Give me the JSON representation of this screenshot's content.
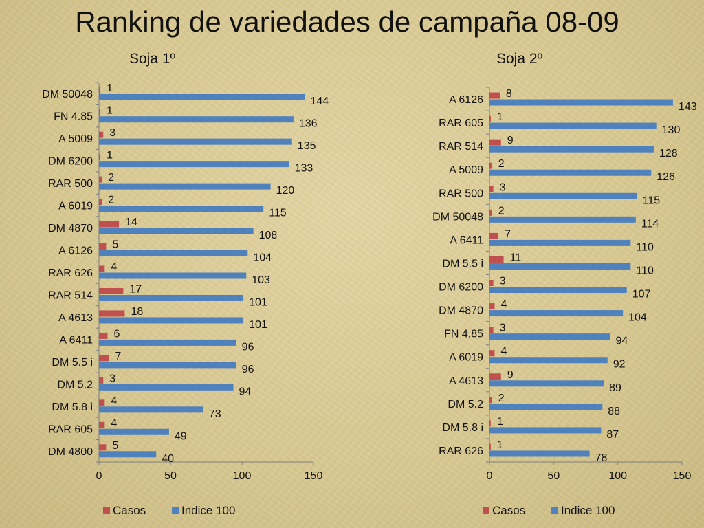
{
  "title": "Ranking de variedades de campaña 08-09",
  "colors": {
    "casos": "#c0504d",
    "indice": "#4f81bd"
  },
  "chart_data": [
    {
      "type": "bar",
      "orientation": "horizontal",
      "title": "Soja 1º",
      "categories": [
        "DM 50048",
        "FN 4.85",
        "A 5009",
        "DM 6200",
        "RAR 500",
        "A 6019",
        "DM 4870",
        "A 6126",
        "RAR 626",
        "RAR 514",
        "A 4613",
        "A 6411",
        "DM 5.5 i",
        "DM 5.2",
        "DM 5.8 i",
        "RAR 605",
        "DM 4800"
      ],
      "series": [
        {
          "name": "Casos",
          "values": [
            1,
            1,
            3,
            1,
            2,
            2,
            14,
            5,
            4,
            17,
            18,
            6,
            7,
            3,
            4,
            4,
            5
          ]
        },
        {
          "name": "Indice 100",
          "values": [
            144,
            136,
            135,
            133,
            120,
            115,
            108,
            104,
            103,
            101,
            101,
            96,
            96,
            94,
            73,
            49,
            40
          ]
        }
      ],
      "xlim": [
        0,
        150
      ],
      "xticks": [
        0,
        50,
        100,
        150
      ],
      "legend": "bottom"
    },
    {
      "type": "bar",
      "orientation": "horizontal",
      "title": "Soja 2º",
      "categories": [
        "A 6126",
        "RAR 605",
        "RAR 514",
        "A 5009",
        "RAR 500",
        "DM 50048",
        "A 6411",
        "DM 5.5 i",
        "DM 6200",
        "DM 4870",
        "FN 4.85",
        "A 6019",
        "A 4613",
        "DM 5.2",
        "DM 5.8 i",
        "RAR 626"
      ],
      "series": [
        {
          "name": "Casos",
          "values": [
            8,
            1,
            9,
            2,
            3,
            2,
            7,
            11,
            3,
            4,
            3,
            4,
            9,
            2,
            1,
            1
          ]
        },
        {
          "name": "Indice 100",
          "values": [
            143,
            130,
            128,
            126,
            115,
            114,
            110,
            110,
            107,
            104,
            94,
            92,
            89,
            88,
            87,
            78
          ]
        }
      ],
      "xlim": [
        0,
        150
      ],
      "xticks": [
        0,
        50,
        100,
        150
      ],
      "legend": "bottom"
    }
  ]
}
